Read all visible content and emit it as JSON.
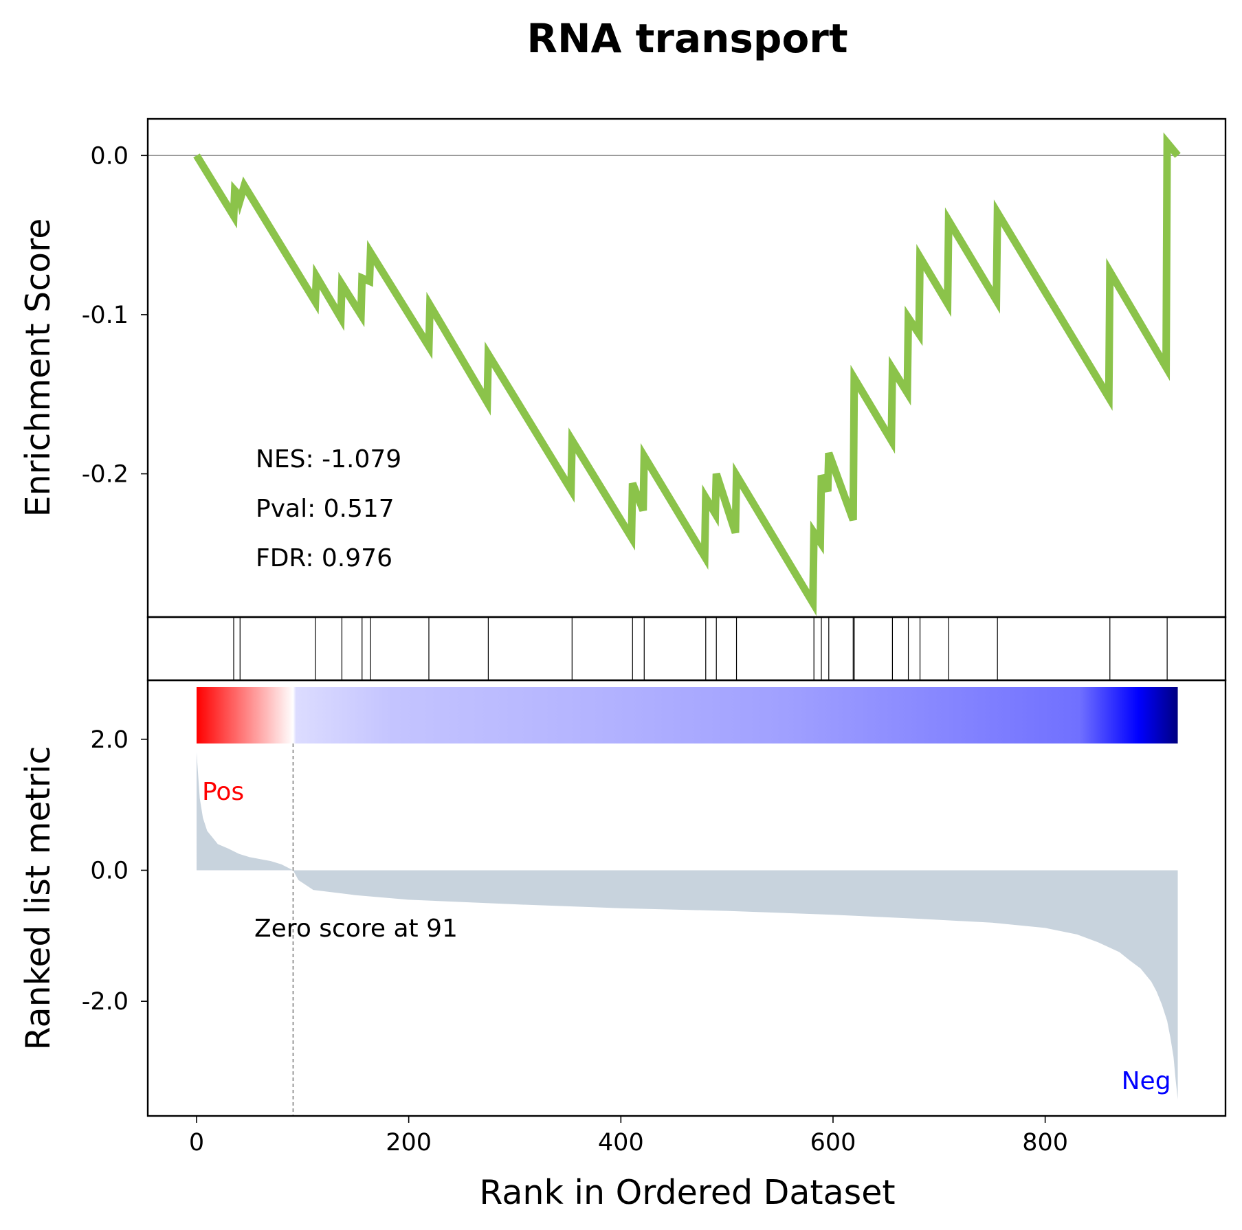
{
  "chart_data": {
    "type": "line",
    "title": "RNA transport",
    "xlabel": "Rank in Ordered Dataset",
    "xlim": [
      -46,
      970
    ],
    "x_ticks": [
      0,
      200,
      400,
      600,
      800
    ],
    "enrichment_panel": {
      "ylabel": "Enrichment Score",
      "ylim": [
        -0.29,
        0.023
      ],
      "y_ticks": [
        0.0,
        -0.1,
        -0.2
      ],
      "y_tick_labels": [
        "0.0",
        "-0.1",
        "-0.2"
      ],
      "line_color": "#8bc34a",
      "zero_line": true,
      "stats": {
        "nes": "NES: -1.079",
        "pval": "Pval: 0.517",
        "fdr": "FDR: 0.976"
      },
      "series": [
        {
          "x": [
            0,
            35,
            36,
            40,
            41,
            45,
            112,
            113,
            136,
            137,
            155,
            156,
            163,
            164,
            219,
            220,
            274,
            275,
            353,
            354,
            410,
            411,
            421,
            422,
            479,
            480,
            489,
            490,
            508,
            509,
            581,
            582,
            588,
            589,
            595,
            596,
            619,
            620,
            655,
            656,
            670,
            671,
            681,
            682,
            708,
            709,
            754,
            755,
            860,
            861,
            914,
            915,
            925
          ],
          "y": [
            0.0,
            -0.038,
            -0.022,
            -0.025,
            -0.028,
            -0.019,
            -0.092,
            -0.076,
            -0.102,
            -0.081,
            -0.1,
            -0.077,
            -0.079,
            -0.061,
            -0.12,
            -0.094,
            -0.155,
            -0.125,
            -0.21,
            -0.179,
            -0.24,
            -0.206,
            -0.223,
            -0.189,
            -0.252,
            -0.215,
            -0.225,
            -0.2,
            -0.237,
            -0.201,
            -0.281,
            -0.237,
            -0.243,
            -0.201,
            -0.211,
            -0.187,
            -0.229,
            -0.14,
            -0.179,
            -0.134,
            -0.149,
            -0.102,
            -0.112,
            -0.064,
            -0.093,
            -0.041,
            -0.091,
            -0.036,
            -0.152,
            -0.073,
            -0.133,
            0.008,
            0.0
          ]
        }
      ]
    },
    "hits_panel": {
      "positions": [
        35,
        41,
        112,
        137,
        156,
        164,
        219,
        275,
        354,
        411,
        422,
        480,
        490,
        509,
        582,
        589,
        596,
        619,
        620,
        656,
        671,
        682,
        709,
        755,
        861,
        915
      ]
    },
    "ranked_panel": {
      "ylabel": "Ranked list metric",
      "ylim": [
        -3.75,
        2.9
      ],
      "y_ticks": [
        2.0,
        0.0,
        -2.0
      ],
      "y_tick_labels": [
        "2.0",
        "0.0",
        "-2.0"
      ],
      "fill_color": "#c8d3dd",
      "pos_label": "Pos",
      "neg_label": "Neg",
      "pos_label_color": "#ff0000",
      "neg_label_color": "#0000ff",
      "zero_cross_x": 91,
      "zero_cross_label": "Zero score at 91",
      "heatmap_colors": [
        "#ff0000",
        "#ffffff",
        "#dcdcff",
        "#c4c4ff",
        "#b4b4ff",
        "#a0a0ff",
        "#7070ff",
        "#0000ff",
        "#000080"
      ],
      "metric": {
        "x": [
          0,
          3,
          6,
          10,
          15,
          20,
          30,
          40,
          50,
          60,
          70,
          80,
          91,
          96,
          110,
          150,
          200,
          300,
          400,
          500,
          600,
          680,
          750,
          800,
          830,
          850,
          870,
          880,
          890,
          900,
          905,
          910,
          915,
          918,
          921,
          923,
          925
        ],
        "y": [
          1.8,
          1.1,
          0.8,
          0.6,
          0.5,
          0.4,
          0.33,
          0.25,
          0.2,
          0.17,
          0.14,
          0.09,
          0.0,
          -0.15,
          -0.3,
          -0.38,
          -0.45,
          -0.52,
          -0.58,
          -0.62,
          -0.68,
          -0.74,
          -0.8,
          -0.88,
          -0.98,
          -1.1,
          -1.25,
          -1.38,
          -1.5,
          -1.7,
          -1.85,
          -2.05,
          -2.3,
          -2.55,
          -2.85,
          -3.2,
          -3.5
        ]
      }
    }
  }
}
